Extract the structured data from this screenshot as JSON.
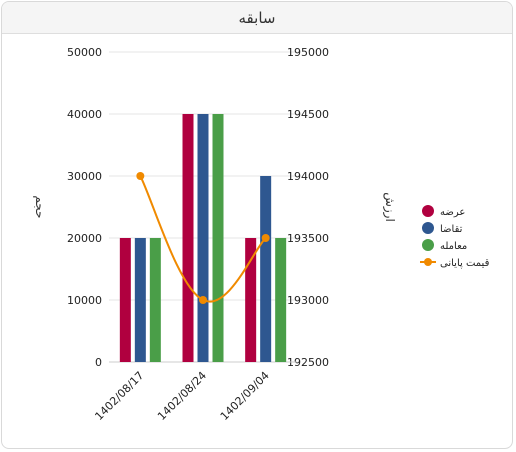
{
  "panel": {
    "title": "سابقه"
  },
  "chart_data": {
    "type": "bar",
    "categories": [
      "1402/08/17",
      "1402/08/24",
      "1402/09/04"
    ],
    "series": [
      {
        "name": "عرضه",
        "type": "bar",
        "axis": "left",
        "color": "#b0003f",
        "values": [
          20000,
          40000,
          20000
        ]
      },
      {
        "name": "تقاضا",
        "type": "bar",
        "axis": "left",
        "color": "#2e5790",
        "values": [
          20000,
          40000,
          30000
        ]
      },
      {
        "name": "معامله",
        "type": "bar",
        "axis": "left",
        "color": "#4a9e48",
        "values": [
          20000,
          40000,
          20000
        ]
      },
      {
        "name": "قیمت پایانی",
        "type": "line",
        "axis": "right",
        "color": "#f08a00",
        "values": [
          194000,
          193000,
          193500
        ]
      }
    ],
    "y_left": {
      "label": "حجم",
      "ticks": [
        0,
        10000,
        20000,
        30000,
        40000,
        50000
      ],
      "range": [
        0,
        50000
      ]
    },
    "y_right": {
      "label": "ارزش",
      "ticks": [
        192500,
        193000,
        193500,
        194000,
        194500,
        195000
      ],
      "range": [
        192500,
        195000
      ]
    },
    "grid": true,
    "legend_position": "right"
  }
}
